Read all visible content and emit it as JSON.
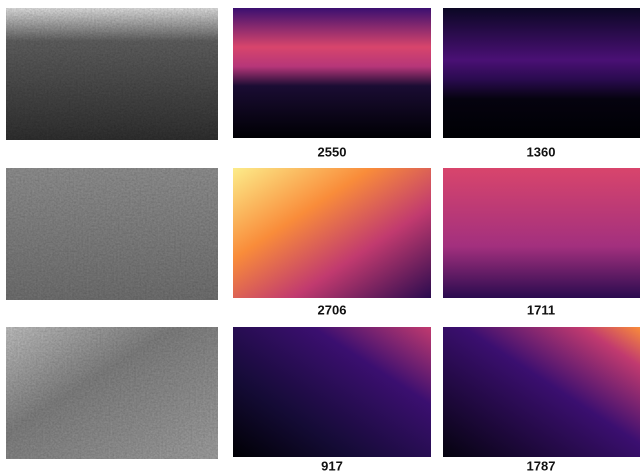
{
  "rows": [
    {
      "counts": [
        2550,
        1360
      ]
    },
    {
      "counts": [
        2706,
        1711
      ]
    },
    {
      "counts": [
        917,
        1787
      ]
    }
  ]
}
